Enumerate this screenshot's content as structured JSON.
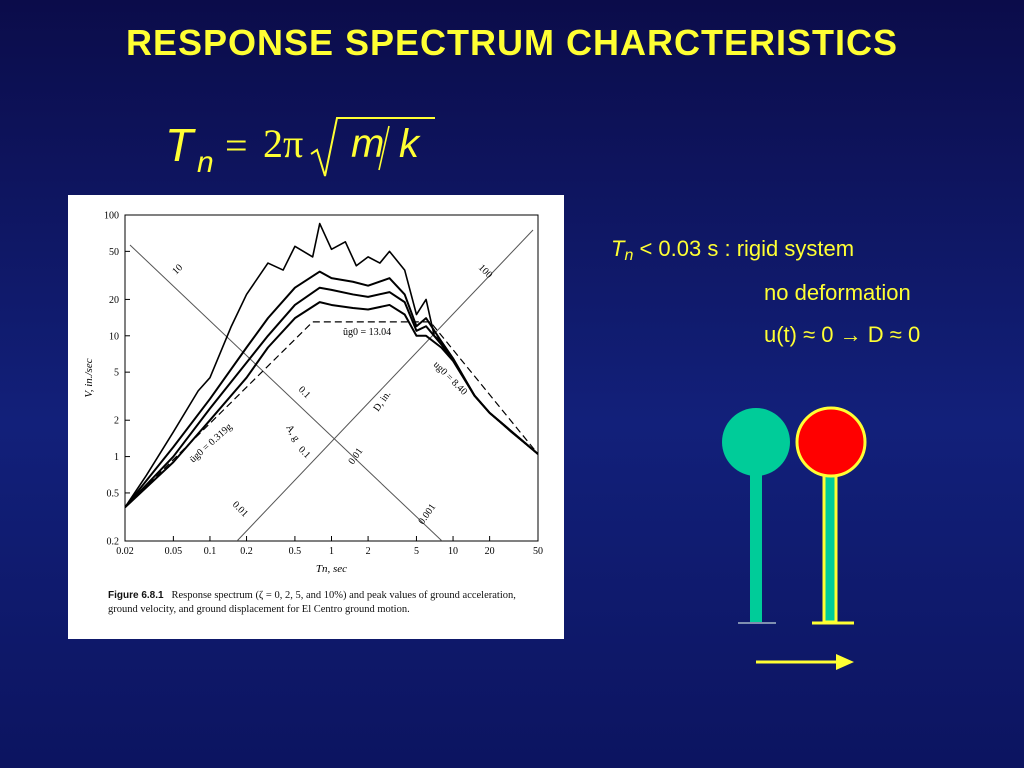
{
  "slide": {
    "title": "RESPONSE SPECTRUM CHARCTERISTICS"
  },
  "formula": {
    "T": "T",
    "n": "n",
    "eq": "=",
    "two_pi": "2π",
    "m": "m",
    "k": "k"
  },
  "figure": {
    "caption_label": "Figure 6.8.1",
    "caption_text": "Response spectrum (ζ = 0, 2, 5, and 10%) and peak values of ground acceleration, ground velocity, and ground displacement for El Centro ground motion."
  },
  "notes": {
    "line1_symbol": "T",
    "line1_sub": "n",
    "line1_text": " < 0.03 s : rigid system",
    "line2": "no deformation",
    "line3": "u(t) ≈ 0 → D ≈ 0"
  },
  "colors": {
    "background": "#0b0c4a",
    "text": "#ffff33",
    "bob_left": "#00cc99",
    "bob_right": "#ff0000",
    "rod": "#00cc99",
    "rod_outline": "#ffff33"
  },
  "chart_data": {
    "type": "line",
    "scale": "log-log",
    "xlabel": "Tn, sec",
    "ylabel": "V, in./sec",
    "xlim": [
      0.02,
      50
    ],
    "ylim": [
      0.2,
      100
    ],
    "x_ticks": [
      0.02,
      0.05,
      0.1,
      0.2,
      0.5,
      1,
      2,
      5,
      10,
      20,
      50
    ],
    "x_tick_labels": [
      "0.02",
      "0.05",
      "0.1",
      "0.2",
      "0.5",
      "1",
      "2",
      "5",
      "10",
      "20",
      "50"
    ],
    "y_ticks": [
      0.2,
      0.5,
      1,
      2,
      5,
      10,
      20,
      50,
      100
    ],
    "y_tick_labels": [
      "0.2",
      "0.5",
      "1",
      "2",
      "5",
      "10",
      "20",
      "50",
      "100"
    ],
    "peak_lines": {
      "x": [
        0.02,
        0.7,
        6.5,
        50
      ],
      "y": [
        0.38,
        13.04,
        13.04,
        1.05
      ]
    },
    "peak_labels": [
      "üg0 = 0.319g",
      "ûg0 = 13.04",
      "ug0 = 8.40"
    ],
    "diagonal_labels": {
      "A_axis": "A, g",
      "D_axis": "D, in.",
      "A_values": [
        "10",
        "0.1",
        "0.1",
        "0.01"
      ],
      "D_values": [
        "100",
        "0.01",
        "0.001"
      ]
    },
    "series": [
      {
        "x": [
          0.02,
          0.03,
          0.05,
          0.08,
          0.1,
          0.15,
          0.2,
          0.3,
          0.4,
          0.5,
          0.7,
          0.8,
          1.0,
          1.3,
          1.6,
          2,
          2.5,
          3,
          4,
          5,
          6,
          7,
          8,
          10,
          15,
          20,
          30,
          50
        ],
        "y": [
          0.38,
          0.7,
          1.6,
          3.5,
          4.5,
          12,
          22,
          40,
          35,
          55,
          45,
          85,
          52,
          60,
          38,
          45,
          40,
          50,
          35,
          15,
          20,
          10,
          9,
          6.5,
          3.2,
          2.3,
          1.6,
          1.05
        ]
      },
      {
        "x": [
          0.02,
          0.05,
          0.1,
          0.2,
          0.3,
          0.5,
          0.8,
          1.0,
          1.5,
          2,
          3,
          4,
          5,
          6,
          8,
          10,
          15,
          20,
          50
        ],
        "y": [
          0.38,
          1.2,
          3.0,
          8,
          14,
          25,
          34,
          30,
          28,
          26,
          30,
          22,
          12,
          14,
          9,
          6.5,
          3.2,
          2.3,
          1.05
        ]
      },
      {
        "x": [
          0.02,
          0.05,
          0.1,
          0.2,
          0.3,
          0.5,
          0.8,
          1.0,
          1.5,
          2,
          3,
          4,
          5,
          6,
          8,
          10,
          15,
          20,
          50
        ],
        "y": [
          0.38,
          1.0,
          2.5,
          6,
          10,
          18,
          25,
          24,
          22,
          21,
          23,
          19,
          11,
          12,
          8.5,
          6.3,
          3.2,
          2.3,
          1.05
        ]
      },
      {
        "x": [
          0.02,
          0.05,
          0.1,
          0.2,
          0.3,
          0.5,
          0.8,
          1.0,
          1.5,
          2,
          3,
          4,
          5,
          6,
          8,
          10,
          15,
          20,
          50
        ],
        "y": [
          0.38,
          0.9,
          2.0,
          4.5,
          8,
          14,
          19,
          18,
          17,
          16.5,
          18,
          15,
          10,
          10,
          8,
          6.2,
          3.2,
          2.3,
          1.05
        ]
      }
    ]
  }
}
